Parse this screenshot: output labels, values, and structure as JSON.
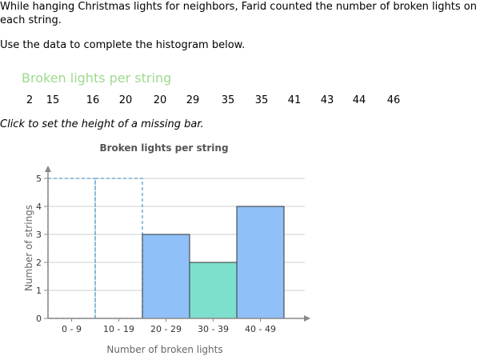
{
  "question": "While hanging Christmas lights for neighbors, Farid counted the number of broken lights on each string.",
  "instruction": "Use the data to complete the histogram below.",
  "data_title": "Broken lights per string",
  "data_values": [
    "2",
    "15",
    "16",
    "20",
    "20",
    "29",
    "35",
    "35",
    "41",
    "43",
    "44",
    "46"
  ],
  "click_hint": "Click to set the height of a missing bar.",
  "colors": {
    "bar_blue": "#8fc0f7",
    "bar_teal": "#7de0cc",
    "missing": "#5ba0c8",
    "title_green": "#9ed98e"
  },
  "chart_data": {
    "type": "bar",
    "title": "Broken lights per string",
    "xlabel": "Number of broken lights",
    "ylabel": "Number of strings",
    "categories": [
      "0 - 9",
      "10 - 19",
      "20 - 29",
      "30 - 39",
      "40 - 49"
    ],
    "values": [
      null,
      null,
      3,
      2,
      4
    ],
    "placeholder_values": [
      5,
      5,
      null,
      null,
      null
    ],
    "y_ticks": [
      "0",
      "1",
      "2",
      "3",
      "4",
      "5"
    ],
    "ylim": [
      0,
      5
    ],
    "grid": true
  }
}
